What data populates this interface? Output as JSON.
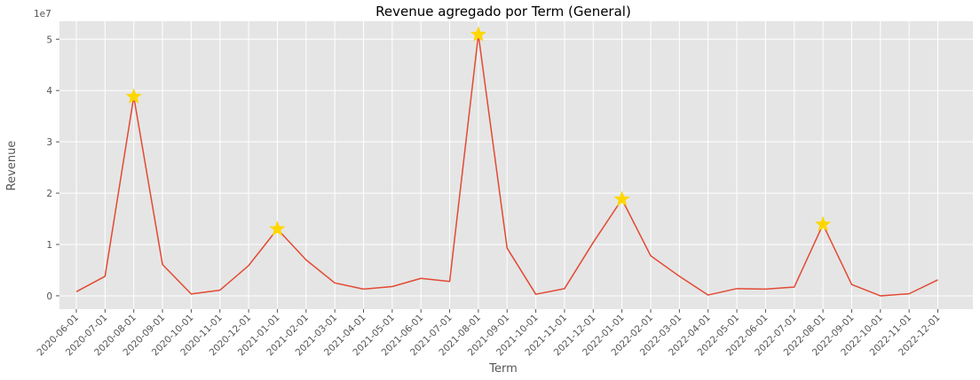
{
  "chart_data": {
    "type": "line",
    "title": "Revenue agregado por Term (General)",
    "xlabel": "Term",
    "ylabel": "Revenue",
    "y_offset_label": "1e7",
    "ylim": [
      -2600000,
      53500000
    ],
    "yticks": [
      0,
      10000000,
      20000000,
      30000000,
      40000000,
      50000000
    ],
    "ytick_labels": [
      "0",
      "1",
      "2",
      "3",
      "4",
      "5"
    ],
    "grid": true,
    "style": "ggplot",
    "line_color": "#E24A33",
    "marker_color": "#FFD700",
    "x": [
      "2020-06-01",
      "2020-07-01",
      "2020-08-01",
      "2020-09-01",
      "2020-10-01",
      "2020-11-01",
      "2020-12-01",
      "2021-01-01",
      "2021-02-01",
      "2021-03-01",
      "2021-04-01",
      "2021-05-01",
      "2021-06-01",
      "2021-07-01",
      "2021-08-01",
      "2021-09-01",
      "2021-10-01",
      "2021-11-01",
      "2021-12-01",
      "2022-01-01",
      "2022-02-01",
      "2022-03-01",
      "2022-04-01",
      "2022-05-01",
      "2022-06-01",
      "2022-07-01",
      "2022-08-01",
      "2022-09-01",
      "2022-10-01",
      "2022-11-01",
      "2022-12-01"
    ],
    "series": [
      {
        "values": [
          800000,
          3800000,
          38800000,
          6100000,
          350000,
          1100000,
          5900000,
          13000000,
          7000000,
          2500000,
          1300000,
          1800000,
          3400000,
          2800000,
          50900000,
          9300000,
          300000,
          1400000,
          10400000,
          18800000,
          7800000,
          3800000,
          150000,
          1400000,
          1300000,
          1700000,
          13900000,
          2200000,
          0,
          400000,
          3100000
        ]
      }
    ],
    "highlighted_points": [
      "2020-08-01",
      "2021-01-01",
      "2021-08-01",
      "2022-01-01",
      "2022-08-01"
    ]
  }
}
